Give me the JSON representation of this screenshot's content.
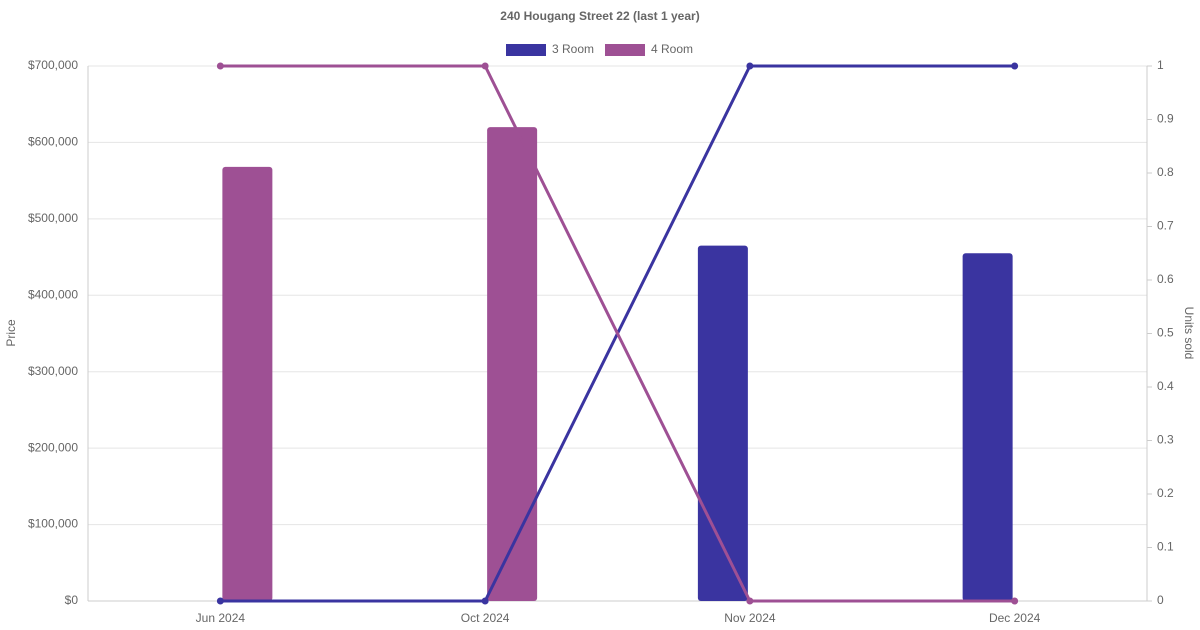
{
  "chart_data": {
    "type": "combo",
    "title": "240 Hougang Street 22 (last 1 year)",
    "categories": [
      "Jun 2024",
      "Oct 2024",
      "Nov 2024",
      "Dec 2024"
    ],
    "y_label": "Price",
    "y2_label": "Units sold",
    "series": [
      {
        "name": "3 Room",
        "color": "#3a34a0",
        "values": [
          null,
          null,
          465000,
          455000
        ],
        "units_sold": [
          0,
          0,
          1,
          1
        ]
      },
      {
        "name": "4 Room",
        "color": "#9e5094",
        "values": [
          568000,
          620000,
          null,
          null
        ],
        "units_sold": [
          1,
          1,
          0,
          0
        ]
      }
    ],
    "ylim": [
      0,
      700000
    ],
    "yticks": [
      {
        "value": 0,
        "label": "$0"
      },
      {
        "value": 100000,
        "label": "$100,000"
      },
      {
        "value": 200000,
        "label": "$200,000"
      },
      {
        "value": 300000,
        "label": "$300,000"
      },
      {
        "value": 400000,
        "label": "$400,000"
      },
      {
        "value": 500000,
        "label": "$500,000"
      },
      {
        "value": 600000,
        "label": "$600,000"
      },
      {
        "value": 700000,
        "label": "$700,000"
      }
    ],
    "y2lim": [
      0,
      1
    ],
    "y2ticks": [
      0,
      0.1,
      0.2,
      0.3,
      0.4,
      0.5,
      0.6,
      0.7,
      0.8,
      0.9,
      1
    ],
    "grid": true
  }
}
